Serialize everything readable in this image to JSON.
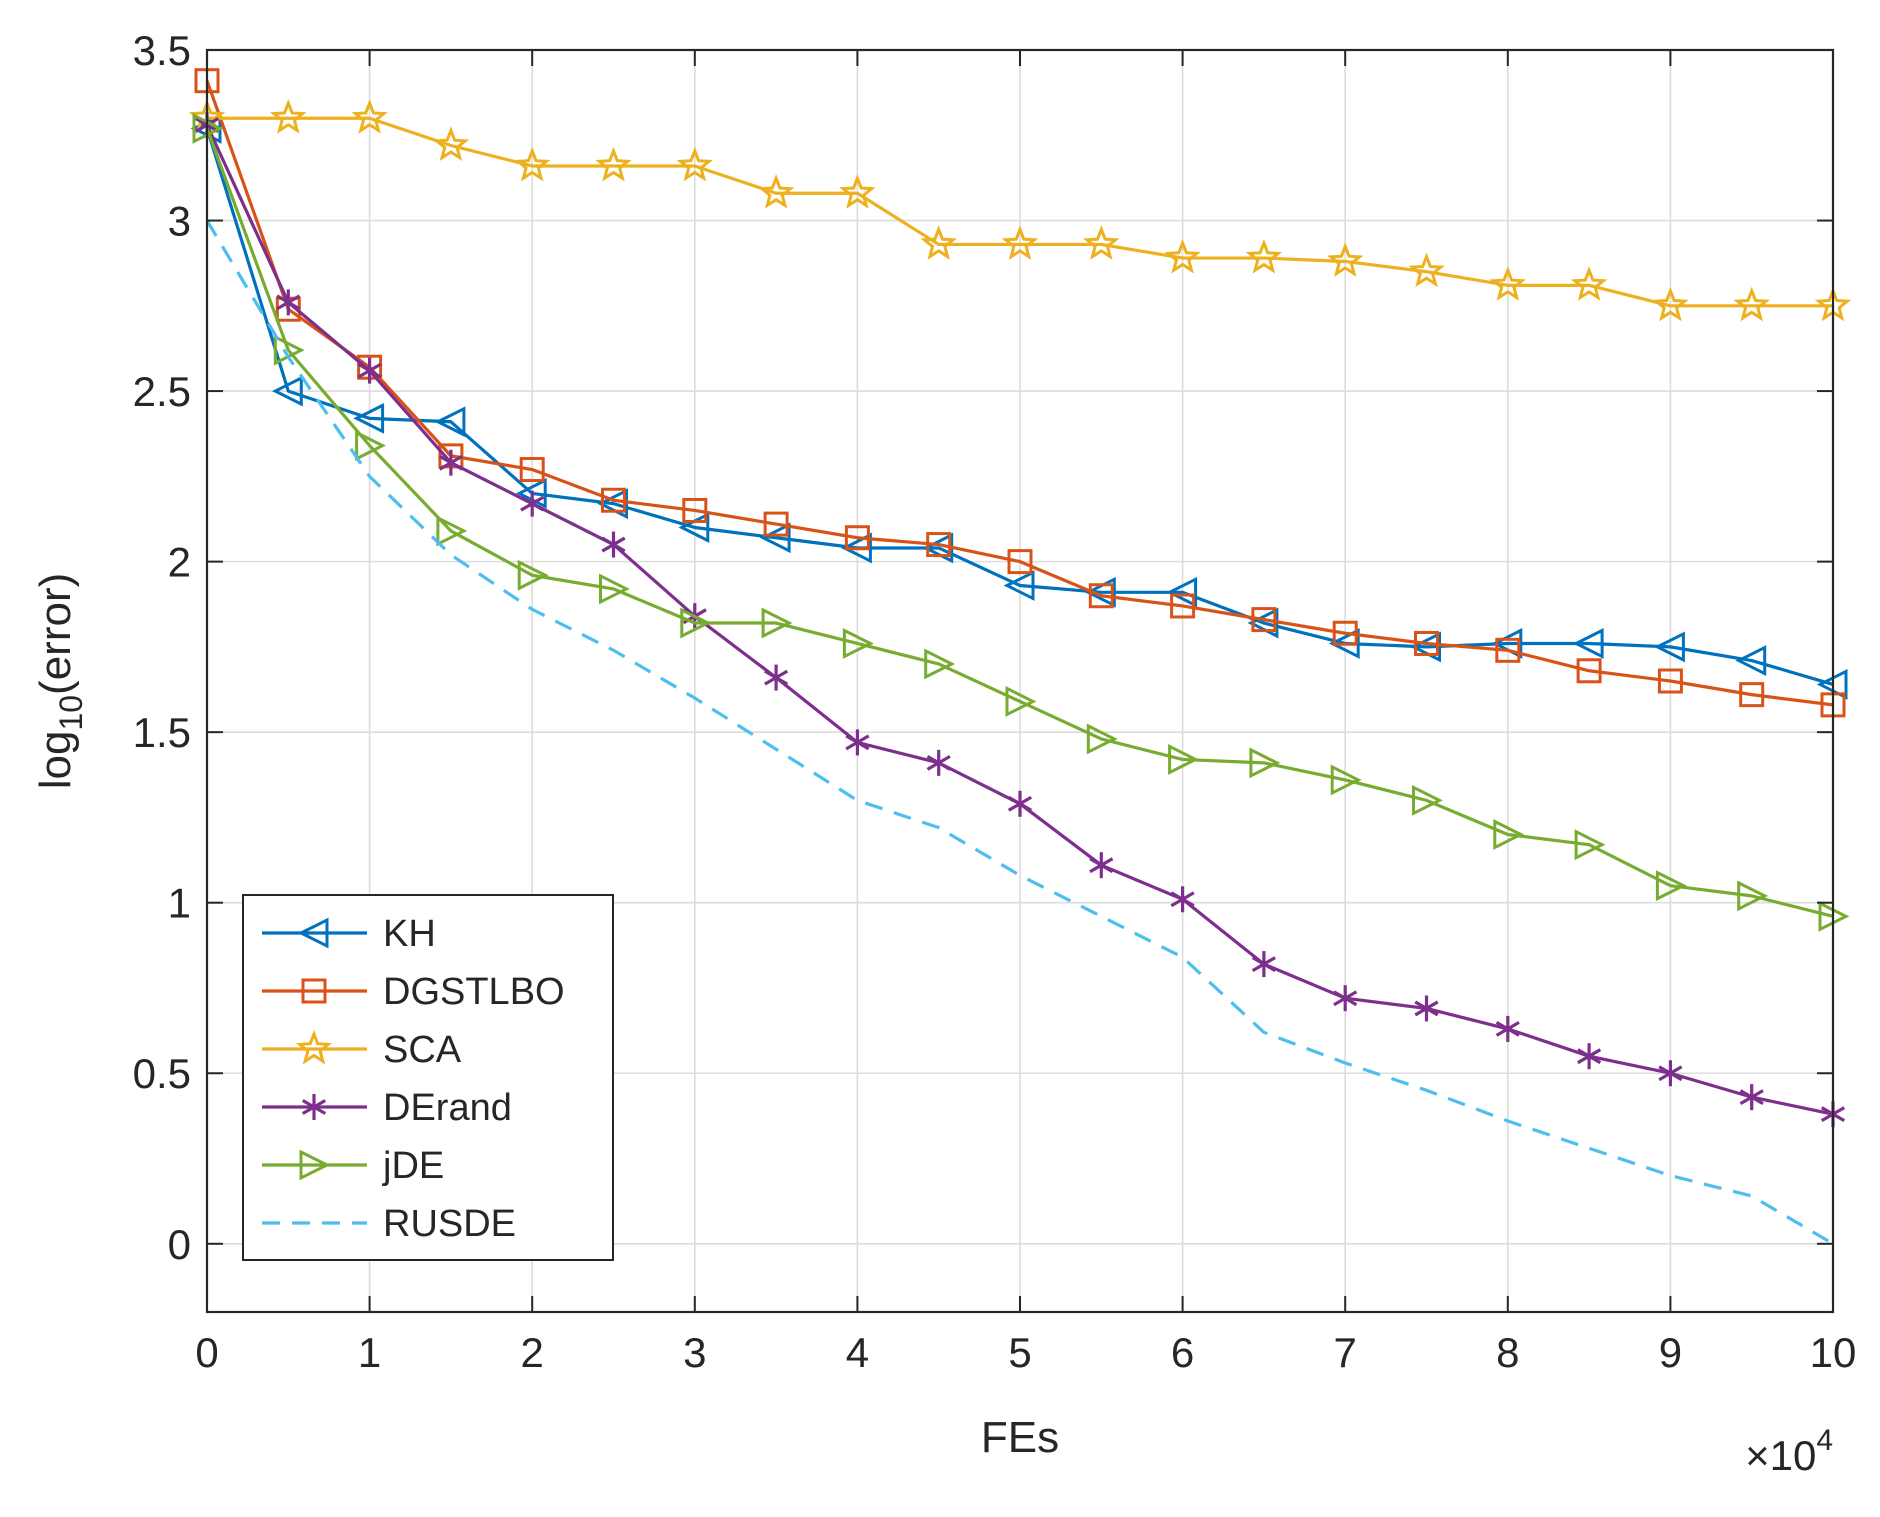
{
  "chart_data": {
    "type": "line",
    "title": "",
    "xlabel": "FEs",
    "ylabel_main": "log",
    "ylabel_sub": "10",
    "ylabel_rest": "(error)",
    "x_multiplier_sign": "×",
    "x_multiplier_base": "10",
    "x_multiplier_exp": "4",
    "xlim": [
      0,
      10
    ],
    "ylim": [
      -0.2,
      3.5
    ],
    "xticks": [
      0,
      1,
      2,
      3,
      4,
      5,
      6,
      7,
      8,
      9,
      10
    ],
    "xtick_labels": [
      "0",
      "1",
      "2",
      "3",
      "4",
      "5",
      "6",
      "7",
      "8",
      "9",
      "10"
    ],
    "yticks": [
      0,
      0.5,
      1,
      1.5,
      2,
      2.5,
      3,
      3.5
    ],
    "ytick_labels": [
      "0",
      "0.5",
      "1",
      "1.5",
      "2",
      "2.5",
      "3",
      "3.5"
    ],
    "grid": true,
    "legend_position": "bottom-left",
    "x": [
      0,
      0.5,
      1,
      1.5,
      2,
      2.5,
      3,
      3.5,
      4,
      4.5,
      5,
      5.5,
      6,
      6.5,
      7,
      7.5,
      8,
      8.5,
      9,
      9.5,
      10
    ],
    "series": [
      {
        "name": "KH",
        "color": "#0072BD",
        "marker": "triangle-left",
        "dash": false,
        "values": [
          3.27,
          2.5,
          2.42,
          2.41,
          2.2,
          2.17,
          2.1,
          2.07,
          2.04,
          2.04,
          1.93,
          1.91,
          1.91,
          1.82,
          1.76,
          1.75,
          1.76,
          1.76,
          1.75,
          1.71,
          1.64
        ]
      },
      {
        "name": "DGSTLBO",
        "color": "#D95319",
        "marker": "square",
        "dash": false,
        "values": [
          3.41,
          2.74,
          2.57,
          2.31,
          2.27,
          2.18,
          2.15,
          2.11,
          2.07,
          2.05,
          2.0,
          1.9,
          1.87,
          1.83,
          1.79,
          1.76,
          1.74,
          1.68,
          1.65,
          1.61,
          1.58
        ]
      },
      {
        "name": "SCA",
        "color": "#EDB120",
        "marker": "star",
        "dash": false,
        "values": [
          3.3,
          3.3,
          3.3,
          3.22,
          3.16,
          3.16,
          3.16,
          3.08,
          3.08,
          2.93,
          2.93,
          2.93,
          2.89,
          2.89,
          2.88,
          2.85,
          2.81,
          2.81,
          2.75,
          2.75,
          2.75
        ]
      },
      {
        "name": "DErand",
        "color": "#7E2F8E",
        "marker": "asterisk",
        "dash": false,
        "values": [
          3.28,
          2.76,
          2.56,
          2.29,
          2.17,
          2.05,
          1.84,
          1.66,
          1.47,
          1.41,
          1.29,
          1.11,
          1.01,
          0.82,
          0.72,
          0.69,
          0.63,
          0.55,
          0.5,
          0.43,
          0.38
        ]
      },
      {
        "name": "jDE",
        "color": "#77AC30",
        "marker": "triangle-right",
        "dash": false,
        "values": [
          3.27,
          2.62,
          2.34,
          2.09,
          1.96,
          1.92,
          1.82,
          1.82,
          1.76,
          1.7,
          1.59,
          1.48,
          1.42,
          1.41,
          1.36,
          1.3,
          1.2,
          1.17,
          1.05,
          1.02,
          0.96
        ]
      },
      {
        "name": "RUSDE",
        "color": "#4DBEEE",
        "marker": "none",
        "dash": true,
        "values": [
          3.0,
          2.6,
          2.25,
          2.02,
          1.86,
          1.74,
          1.6,
          1.45,
          1.3,
          1.22,
          1.08,
          0.96,
          0.84,
          0.62,
          0.53,
          0.45,
          0.36,
          0.28,
          0.2,
          0.14,
          0.0
        ]
      }
    ]
  }
}
